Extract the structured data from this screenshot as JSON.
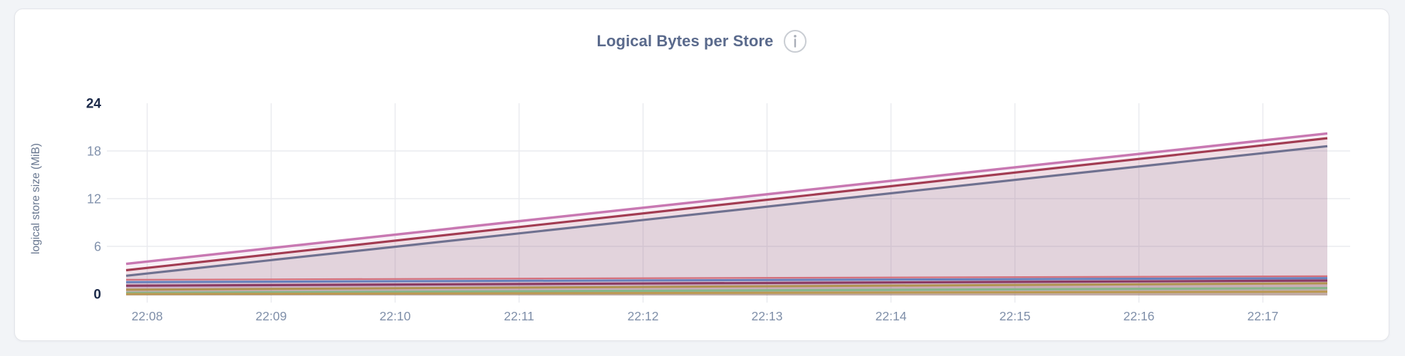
{
  "page": {
    "background": "#f2f4f7"
  },
  "card": {
    "background": "#ffffff",
    "border_color": "#e3e5e9"
  },
  "header": {
    "title": "Logical Bytes per Store",
    "info_icon": "info"
  },
  "chart_data": {
    "type": "area",
    "title": "Logical Bytes per Store",
    "xlabel": "",
    "ylabel": "logical store size (MiB)",
    "legend": null,
    "grid": {
      "visible": true,
      "color": "#eaebef"
    },
    "x_axis": {
      "tick_labels": [
        "22:08",
        "22:09",
        "22:10",
        "22:11",
        "22:12",
        "22:13",
        "22:14",
        "22:15",
        "22:16",
        "22:17"
      ],
      "tick_minutes": [
        8,
        9,
        10,
        11,
        12,
        13,
        14,
        15,
        16,
        17
      ],
      "domain_minutes": [
        7.83,
        17.52
      ],
      "tick_color": "#7f8fa9"
    },
    "y_axis": {
      "ticks": [
        0,
        6,
        12,
        18,
        24
      ],
      "bold_ticks": [
        0,
        24
      ],
      "domain": [
        0,
        24
      ],
      "gridline_values": [
        6,
        12,
        18
      ],
      "tick_color_normal": "#8292ac",
      "tick_color_bold": "#1d2b4a",
      "axis_title_color": "#67768f"
    },
    "series": [
      {
        "id": "series-1",
        "color": "#c878b2",
        "stroke_width": 3.5,
        "fill_opacity": 0.1,
        "points_min_mib": [
          [
            7.83,
            3.8
          ],
          [
            17.52,
            20.2
          ]
        ]
      },
      {
        "id": "series-2",
        "color": "#a23c52",
        "stroke_width": 3.2,
        "fill_opacity": 0.1,
        "points_min_mib": [
          [
            7.83,
            3.0
          ],
          [
            17.52,
            19.6
          ]
        ]
      },
      {
        "id": "series-3",
        "color": "#6f7190",
        "stroke_width": 3.2,
        "fill_opacity": 0.1,
        "points_min_mib": [
          [
            7.83,
            2.3
          ],
          [
            17.52,
            18.6
          ]
        ]
      },
      {
        "id": "series-4",
        "color": "#d4707c",
        "stroke_width": 2.2,
        "fill_opacity": 0.1,
        "points_min_mib": [
          [
            7.83,
            1.8
          ],
          [
            17.52,
            2.25
          ]
        ]
      },
      {
        "id": "series-5",
        "color": "#6680bc",
        "stroke_width": 3.0,
        "fill_opacity": 0.1,
        "points_min_mib": [
          [
            7.83,
            1.5
          ],
          [
            17.52,
            2.0
          ]
        ]
      },
      {
        "id": "series-6",
        "color": "#8a3b64",
        "stroke_width": 3.2,
        "fill_opacity": 0.1,
        "points_min_mib": [
          [
            7.83,
            1.05
          ],
          [
            17.52,
            1.7
          ]
        ]
      },
      {
        "id": "series-7",
        "color": "#b19350",
        "stroke_width": 3.0,
        "fill_opacity": 0.1,
        "points_min_mib": [
          [
            7.83,
            0.55
          ],
          [
            17.52,
            1.35
          ]
        ]
      },
      {
        "id": "series-8",
        "color": "#87b58b",
        "stroke_width": 3.2,
        "fill_opacity": 0.1,
        "points_min_mib": [
          [
            7.83,
            0.15
          ],
          [
            17.52,
            0.75
          ]
        ]
      },
      {
        "id": "series-9",
        "color": "#bb9952",
        "stroke_width": 3.0,
        "fill_opacity": 0.1,
        "points_min_mib": [
          [
            7.83,
            0.0
          ],
          [
            17.52,
            0.3
          ]
        ]
      }
    ]
  }
}
